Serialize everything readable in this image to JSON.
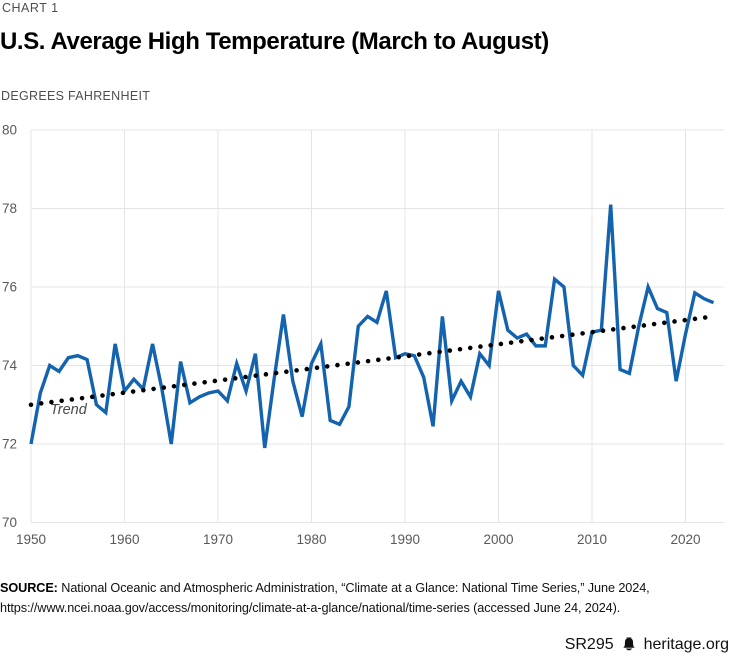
{
  "header": {
    "kicker": "CHART 1",
    "title": "U.S. Average High Temperature (March to August)",
    "units_label": "DEGREES FAHRENHEIT"
  },
  "source": {
    "prefix": "SOURCE:",
    "line1": "National Oceanic and Atmospheric Administration, “Climate at a Glance: National Time Series,” June 2024,",
    "line2": "https://www.ncei.noaa.gov/access/monitoring/climate-at-a-glance/national/time-series (accessed June 24, 2024)."
  },
  "footer": {
    "report_id": "SR295",
    "logo_icon": "liberty-bell-icon",
    "site": "heritage.org"
  },
  "chart_data": {
    "type": "line",
    "title": "U.S. Average High Temperature (March to August)",
    "ylabel": "DEGREES FAHRENHEIT",
    "ylim": [
      70,
      80
    ],
    "yticks": [
      70,
      72,
      74,
      76,
      78,
      80
    ],
    "xticks": [
      1950,
      1960,
      1970,
      1980,
      1990,
      2000,
      2010,
      2020
    ],
    "grid": true,
    "grid_color": "#e4e4e4",
    "tick_color": "#58595b",
    "series_color": "#1363af",
    "x": [
      1950,
      1951,
      1952,
      1953,
      1954,
      1955,
      1956,
      1957,
      1958,
      1959,
      1960,
      1961,
      1962,
      1963,
      1964,
      1965,
      1966,
      1967,
      1968,
      1969,
      1970,
      1971,
      1972,
      1973,
      1974,
      1975,
      1976,
      1977,
      1978,
      1979,
      1980,
      1981,
      1982,
      1983,
      1984,
      1985,
      1986,
      1987,
      1988,
      1989,
      1990,
      1991,
      1992,
      1993,
      1994,
      1995,
      1996,
      1997,
      1998,
      1999,
      2000,
      2001,
      2002,
      2003,
      2004,
      2005,
      2006,
      2007,
      2008,
      2009,
      2010,
      2011,
      2012,
      2013,
      2014,
      2015,
      2016,
      2017,
      2018,
      2019,
      2020,
      2021,
      2022,
      2023
    ],
    "values": [
      72.0,
      73.3,
      74.0,
      73.85,
      74.2,
      74.25,
      74.15,
      73.0,
      72.8,
      74.55,
      73.35,
      73.65,
      73.4,
      74.55,
      73.4,
      72.0,
      74.1,
      73.05,
      73.2,
      73.3,
      73.35,
      73.1,
      74.05,
      73.35,
      74.3,
      71.9,
      73.65,
      75.3,
      73.6,
      72.7,
      74.05,
      74.55,
      72.6,
      72.5,
      72.95,
      75.0,
      75.25,
      75.1,
      75.9,
      74.2,
      74.3,
      74.25,
      73.7,
      72.45,
      75.25,
      73.1,
      73.6,
      73.2,
      74.3,
      74.0,
      75.9,
      74.9,
      74.7,
      74.8,
      74.5,
      74.5,
      76.2,
      76.0,
      74.0,
      73.75,
      74.85,
      74.9,
      78.1,
      73.9,
      73.8,
      75.0,
      76.0,
      75.45,
      75.35,
      73.6,
      74.8,
      75.85,
      75.7,
      75.6
    ],
    "trend": {
      "label": "Trend",
      "style": "dotted",
      "color": "#000000",
      "start": {
        "x": 1950,
        "y": 73.0
      },
      "end": {
        "x": 2023,
        "y": 75.25
      }
    }
  }
}
